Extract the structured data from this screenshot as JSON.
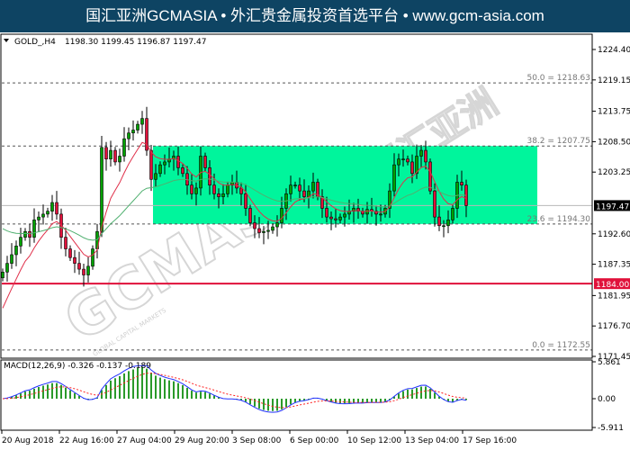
{
  "header": {
    "title": "国汇亚洲GCMASIA • 外汇贵金属投资首选平台 • www.gcm-asia.com"
  },
  "watermark": {
    "text": "GCMASIA",
    "subtext": "GLOBAL CAPITAL MARKETS",
    "cn_text": "国汇亚洲"
  },
  "colors": {
    "bull": "#00a000",
    "bear": "#e0103a",
    "zone": "#00f59c",
    "support": "#e0103a",
    "ma_fast": "#e0304a",
    "ma_slow": "#50b070",
    "macd_hist": "#2a9a2a",
    "macd_line": "#2030ff",
    "signal": "#ff2020"
  },
  "chart_data": {
    "type": "candlestick",
    "symbol_label": "GOLD_,H4",
    "ohlc_label": [
      "1198.30",
      "1199.45",
      "1196.87",
      "1197.47"
    ],
    "ylim": [
      1171.45,
      1224.4
    ],
    "y_ticks": [
      "1224.40",
      "1219.15",
      "1213.75",
      "1208.50",
      "1203.25",
      "1192.60",
      "1187.35",
      "1181.95",
      "1176.70",
      "1171.45"
    ],
    "current_price": {
      "value": 1197.47,
      "label": "1197.47"
    },
    "support_line": {
      "value": 1184.0,
      "label": "1184.00"
    },
    "fib_levels": [
      {
        "value": 1218.63,
        "label": "50.0 = 1218.63"
      },
      {
        "value": 1207.75,
        "label": "38.2 = 1207.75"
      },
      {
        "value": 1194.3,
        "label": "23.6 = 1194.30"
      },
      {
        "value": 1172.55,
        "label": "0.0 = 1172.55"
      }
    ],
    "zone": {
      "top": 1207.75,
      "bottom": 1194.3
    },
    "x_ticks": [
      "20 Aug 2018",
      "22 Aug 16:00",
      "27 Aug 04:00",
      "29 Aug 20:00",
      "3 Sep 08:00",
      "6 Sep 00:00",
      "10 Sep 12:00",
      "13 Sep 04:00",
      "17 Sep 16:00"
    ],
    "close": [
      1186,
      1187.5,
      1189,
      1190.5,
      1192,
      1193,
      1192,
      1195,
      1195.5,
      1196,
      1196.5,
      1198,
      1196,
      1192,
      1190,
      1188.5,
      1187.5,
      1186.5,
      1185.5,
      1187,
      1190,
      1193,
      1207.5,
      1205.5,
      1207,
      1205,
      1206,
      1209,
      1210,
      1210.5,
      1211.5,
      1212.5,
      1207,
      1202,
      1203,
      1204.5,
      1205,
      1205.5,
      1206,
      1204,
      1203,
      1201,
      1199.5,
      1200.5,
      1206,
      1204,
      1201,
      1199.5,
      1199,
      1199.5,
      1201,
      1201.5,
      1200.5,
      1199.5,
      1197,
      1194.5,
      1193.5,
      1192.8,
      1193,
      1193.2,
      1193.8,
      1194.5,
      1197,
      1199.5,
      1201,
      1201,
      1200,
      1199,
      1200,
      1201.5,
      1199,
      1197,
      1195.5,
      1195.2,
      1195,
      1195.5,
      1196,
      1196.5,
      1197,
      1196.5,
      1196,
      1196.8,
      1196.5,
      1196,
      1196,
      1197,
      1200,
      1204.5,
      1205.5,
      1205.5,
      1205,
      1203,
      1206,
      1207,
      1205,
      1200,
      1195.5,
      1194,
      1194,
      1195,
      1197,
      1201.5,
      1201,
      1197.47
    ],
    "macd": {
      "label": "MACD(12,26,9) -0.326 -0.137 -0.189",
      "ylim": [
        -5.911,
        5.861
      ],
      "y_ticks": [
        "5.861",
        "0.00",
        "-5.911"
      ]
    }
  }
}
